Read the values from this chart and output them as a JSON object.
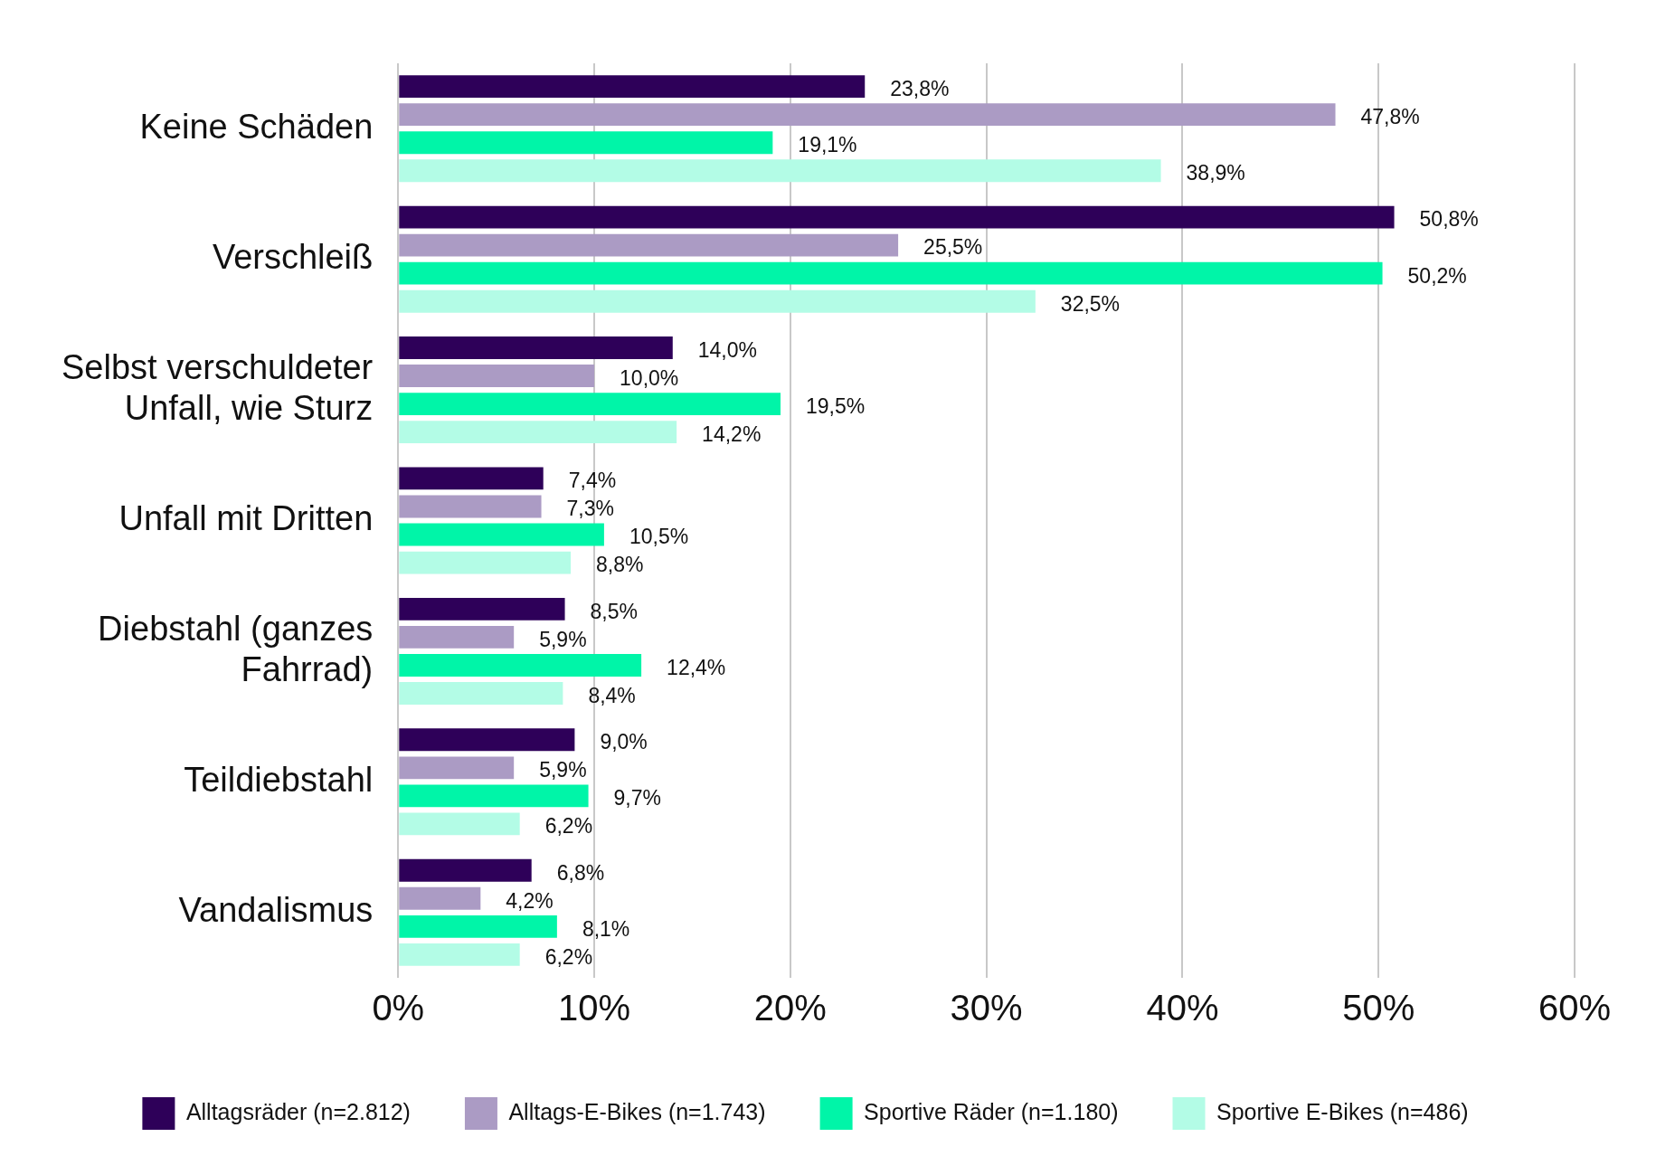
{
  "chart_data": {
    "type": "bar",
    "orientation": "horizontal",
    "categories": [
      "Keine Schäden",
      "Verschleiß",
      "Selbst verschuldeter Unfall, wie Sturz",
      "Unfall mit Dritten",
      "Diebstahl (ganzes Fahrrad)",
      "Teildiebstahl",
      "Vandalismus"
    ],
    "series": [
      {
        "name": "Alltagsräder (n=2.812)",
        "color": "#2e0059",
        "values": [
          23.8,
          50.8,
          14.0,
          7.4,
          8.5,
          9.0,
          6.8
        ],
        "value_labels": [
          "23,8%",
          "50,8%",
          "14,0%",
          "7,4%",
          "8,5%",
          "9,0%",
          "6,8%"
        ]
      },
      {
        "name": "Alltags-E-Bikes (n=1.743)",
        "color": "#ab9bc4",
        "values": [
          47.8,
          25.5,
          10.0,
          7.3,
          5.9,
          5.9,
          4.2
        ],
        "value_labels": [
          "47,8%",
          "25,5%",
          "10,0%",
          "7,3%",
          "5,9%",
          "5,9%",
          "4,2%"
        ]
      },
      {
        "name": "Sportive Räder (n=1.180)",
        "color": "#00f5a8",
        "values": [
          19.1,
          50.2,
          19.5,
          10.5,
          12.4,
          9.7,
          8.1
        ],
        "value_labels": [
          "19,1%",
          "50,2%",
          "19,5%",
          "10,5%",
          "12,4%",
          "9,7%",
          "8,1%"
        ]
      },
      {
        "name": "Sportive E-Bikes (n=486)",
        "color": "#b3fce6",
        "values": [
          38.9,
          32.5,
          14.2,
          8.8,
          8.4,
          6.2,
          6.2
        ],
        "value_labels": [
          "38,9%",
          "32,5%",
          "14,2%",
          "8,8%",
          "8,4%",
          "6,2%",
          "6,2%"
        ]
      }
    ],
    "xlim": [
      0,
      60
    ],
    "xticks": [
      {
        "value": 0,
        "label": "0%"
      },
      {
        "value": 10,
        "label": "10%"
      },
      {
        "value": 20,
        "label": "20%"
      },
      {
        "value": 30,
        "label": "30%"
      },
      {
        "value": 40,
        "label": "40%"
      },
      {
        "value": 50,
        "label": "50%"
      },
      {
        "value": 60,
        "label": "60%"
      }
    ],
    "grid": "x",
    "legend": "bottom"
  }
}
